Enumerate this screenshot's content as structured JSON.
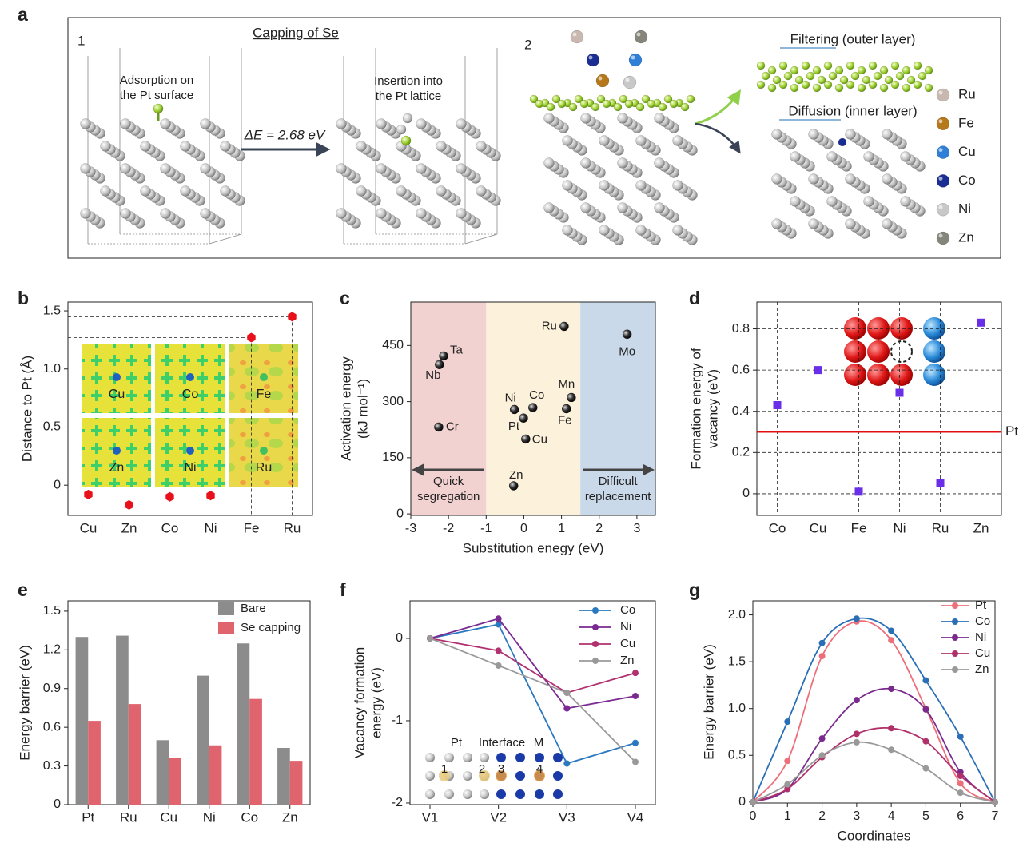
{
  "panels": [
    "a",
    "b",
    "c",
    "d",
    "e",
    "f",
    "g"
  ],
  "panel_a": {
    "step_1": "1",
    "title": "Capping of Se",
    "adsorption": [
      "Adsorption on",
      "the Pt surface"
    ],
    "energy": "ΔE = 2.68 eV",
    "insertion": [
      "Insertion into",
      "the Pt lattice"
    ],
    "step_2": "2",
    "filtering": "Filtering (outer layer)",
    "diffusion": "Diffusion (inner layer)",
    "legend": [
      {
        "name": "Ru",
        "color": "#c9b8b0"
      },
      {
        "name": "Fe",
        "color": "#b5781a"
      },
      {
        "name": "Cu",
        "color": "#2f7fd6"
      },
      {
        "name": "Co",
        "color": "#1a2d92"
      },
      {
        "name": "Ni",
        "color": "#c8c8c8"
      },
      {
        "name": "Zn",
        "color": "#85857c"
      }
    ]
  },
  "chart_data": [
    {
      "type": "dot",
      "ylabel": [
        "Distance to Pt (Å)"
      ],
      "categories": [
        "Cu",
        "Zn",
        "Co",
        "Ni",
        "Fe",
        "Ru"
      ],
      "values": [
        -0.08,
        -0.17,
        -0.1,
        -0.09,
        1.27,
        1.45
      ],
      "color": "#e8101a",
      "marker": "hexagon",
      "ylim": [
        -0.26,
        1.576
      ],
      "yticks": [
        0,
        0.5,
        {
          "value": 1,
          "label": "1.0"
        },
        1.5
      ],
      "guides": true
    },
    {
      "type": "scatter",
      "xlabel": "Substitution enegy (eV)",
      "ylabel": [
        "Activation energy",
        "(kJ mol⁻¹)"
      ],
      "xlim": [
        -3,
        3.49
      ],
      "xticks": [
        -3,
        -2,
        -1,
        0,
        1,
        2,
        3
      ],
      "ylim": [
        -4,
        566
      ],
      "yticks": [
        0,
        150,
        300,
        450
      ],
      "regions": [
        {
          "xlim": [
            -3,
            -1
          ],
          "color": "#f2d1d1"
        },
        {
          "xlim": [
            -1,
            1.5
          ],
          "color": "#fcf1da"
        },
        {
          "xlim": [
            1.5,
            3.49
          ],
          "color": "#c9d9ea"
        }
      ],
      "annotations": [
        [
          "Quick",
          "segregation"
        ],
        [
          "Difficult",
          "replacement"
        ]
      ],
      "series": [
        {
          "labels": [
            "Ta",
            "Nb",
            "Cr",
            "Ru",
            "Mo",
            "Mn",
            "Fe",
            "Co",
            "Ni",
            "Pt",
            "Cu",
            "Zn"
          ],
          "x": [
            -2.13,
            -2.24,
            -2.26,
            1.07,
            2.74,
            1.26,
            1.13,
            0.24,
            -0.25,
            -0.01,
            0.05,
            -0.27
          ],
          "values": [
            422,
            399,
            232,
            501,
            480,
            311,
            281,
            284,
            279,
            256,
            200,
            75
          ],
          "color": "#111111",
          "label_colors": [
            "#222222",
            "#222222",
            "#222222",
            "#e01010",
            "#222222",
            "#222222",
            "#e01010",
            "#e01010",
            "#e01010",
            "#e01010",
            "#e01010",
            "#e01010"
          ]
        }
      ]
    },
    {
      "type": "dot",
      "ylabel": [
        "Formation energy of",
        "vacancy (eV)"
      ],
      "categories": [
        "Co",
        "Cu",
        "Fe",
        "Ni",
        "Ru",
        "Zn"
      ],
      "values": [
        0.43,
        0.6,
        0.01,
        0.49,
        0.05,
        0.83
      ],
      "color": "#6a2ee8",
      "marker": "square",
      "ylim": [
        -0.105,
        0.93
      ],
      "yticks": [
        0,
        0.2,
        0.4,
        0.6,
        0.8
      ],
      "grid": true,
      "reference_line": {
        "value": 0.3,
        "label": "Pt",
        "color": "#e01010"
      }
    },
    {
      "type": "bar",
      "ylabel": [
        "Energy barrier (eV)"
      ],
      "categories": [
        "Pt",
        "Ru",
        "Cu",
        "Ni",
        "Co",
        "Zn"
      ],
      "series": [
        {
          "name": "Bare",
          "color": "#8c8c8c",
          "values": [
            1.3,
            1.31,
            0.5,
            1.0,
            1.25,
            0.44
          ]
        },
        {
          "name": "Se capping",
          "color": "#e0646e",
          "values": [
            0.65,
            0.78,
            0.36,
            0.46,
            0.82,
            0.34
          ]
        }
      ],
      "ylim": [
        0,
        1.58
      ],
      "yticks": [
        0,
        0.3,
        0.6,
        0.9,
        1.2,
        1.5
      ],
      "legend": "upper right"
    },
    {
      "type": "line",
      "ylabel": [
        "Vacancy formation",
        "energy (eV)"
      ],
      "categories": [
        "V1",
        "V2",
        "V3",
        "V4"
      ],
      "series": [
        {
          "name": "Co",
          "color": "#2a78c0",
          "values": [
            0,
            0.17,
            -1.52,
            -1.27
          ]
        },
        {
          "name": "Ni",
          "color": "#7a2a90",
          "values": [
            0,
            0.24,
            -0.85,
            -0.7
          ]
        },
        {
          "name": "Cu",
          "color": "#b03070",
          "values": [
            0,
            -0.15,
            -0.66,
            -0.42
          ]
        },
        {
          "name": "Zn",
          "color": "#999999",
          "values": [
            0,
            -0.33,
            -0.66,
            -1.5
          ]
        }
      ],
      "ylim": [
        -2.02,
        0.456
      ],
      "yticks": [
        -2,
        -1,
        0
      ],
      "legend": "upper right",
      "inset_labels": {
        "left": "Pt",
        "middle": "Interface",
        "right": "M",
        "sites": [
          "1",
          "2",
          "3",
          "4"
        ]
      }
    },
    {
      "type": "line",
      "xlabel": "Coordinates",
      "ylabel": [
        "Energy barrier (eV)"
      ],
      "x": [
        0,
        1,
        2,
        3,
        4,
        5,
        6,
        7
      ],
      "xlim": [
        0,
        7
      ],
      "xticks": [
        0,
        1,
        2,
        3,
        4,
        5,
        6,
        7
      ],
      "series": [
        {
          "name": "Pt",
          "color": "#ec6f7a",
          "values": [
            0,
            0.44,
            1.56,
            1.93,
            1.73,
            1.0,
            0.2,
            0
          ]
        },
        {
          "name": "Co",
          "color": "#2a6fb5",
          "values": [
            0,
            0.86,
            1.7,
            1.96,
            1.83,
            1.3,
            0.7,
            0
          ]
        },
        {
          "name": "Ni",
          "color": "#7a2a8c",
          "values": [
            0,
            0.14,
            0.68,
            1.09,
            1.21,
            0.99,
            0.32,
            0
          ]
        },
        {
          "name": "Cu",
          "color": "#b0306a",
          "values": [
            0,
            0.14,
            0.48,
            0.73,
            0.79,
            0.65,
            0.28,
            0
          ]
        },
        {
          "name": "Zn",
          "color": "#999999",
          "values": [
            0,
            0.19,
            0.5,
            0.64,
            0.56,
            0.36,
            0.1,
            0
          ]
        }
      ],
      "ylim": [
        -0.01,
        2.15
      ],
      "yticks": [
        0,
        0.5,
        {
          "value": 1,
          "label": "1.0"
        },
        1.5,
        {
          "value": 2,
          "label": "2.0"
        }
      ],
      "legend": "upper right",
      "smooth": true
    }
  ]
}
